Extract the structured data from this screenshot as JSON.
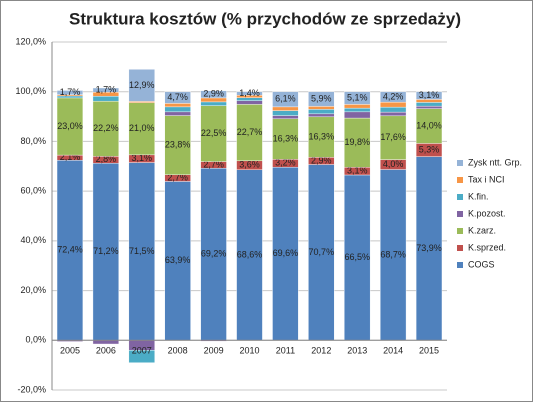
{
  "chart_data": {
    "type": "stacked_bar",
    "title": "Struktura kosztów (% przychodów ze sprzedaży)",
    "categories": [
      "2005",
      "2006",
      "2007",
      "2008",
      "2009",
      "2010",
      "2011",
      "2012",
      "2013",
      "2014",
      "2015"
    ],
    "ylim": [
      -20,
      120
    ],
    "yticks": [
      {
        "value": -20,
        "label": "-20,0%"
      },
      {
        "value": 0,
        "label": "0,0%"
      },
      {
        "value": 20,
        "label": "20,0%"
      },
      {
        "value": 40,
        "label": "40,0%"
      },
      {
        "value": 60,
        "label": "60,0%"
      },
      {
        "value": 80,
        "label": "80,0%"
      },
      {
        "value": 100,
        "label": "100,0%"
      },
      {
        "value": 120,
        "label": "120,0%"
      }
    ],
    "grid": true,
    "legend": "right",
    "series": [
      {
        "name": "COGS",
        "color": "#4f81bd",
        "values": [
          72.4,
          71.2,
          71.5,
          63.9,
          69.2,
          68.6,
          69.6,
          70.7,
          66.5,
          68.7,
          73.9
        ],
        "value_labels": [
          "72,4%",
          "71,2%",
          "71,5%",
          "63,9%",
          "69,2%",
          "68,6%",
          "69,6%",
          "70,7%",
          "66,5%",
          "68,7%",
          "73,9%"
        ]
      },
      {
        "name": "K.sprzed.",
        "color": "#c0504d",
        "values": [
          2.1,
          2.8,
          3.1,
          2.7,
          2.7,
          3.6,
          3.2,
          2.9,
          3.1,
          4.0,
          5.3
        ],
        "value_labels": [
          "2,1%",
          "2,8%",
          "3,1%",
          "2,7%",
          "2,7%",
          "3,6%",
          "3,2%",
          "2,9%",
          "3,1%",
          "4,0%",
          "5,3%"
        ]
      },
      {
        "name": "K.zarz.",
        "color": "#9bbb59",
        "values": [
          23.0,
          22.2,
          21.0,
          23.8,
          22.5,
          22.7,
          16.3,
          16.3,
          19.8,
          17.6,
          14.0
        ],
        "value_labels": [
          "23,0%",
          "22,2%",
          "21,0%",
          "23,8%",
          "22,5%",
          "22,7%",
          "16,3%",
          "16,3%",
          "19,8%",
          "17,6%",
          "14,0%"
        ]
      },
      {
        "name": "K.pozost.",
        "color": "#8064a2",
        "values": [
          -0.5,
          -1.5,
          -4.0,
          1.5,
          -0.4,
          1.5,
          1.3,
          1.2,
          2.5,
          1.5,
          1.0
        ]
      },
      {
        "name": "K.fin.",
        "color": "#4bacc6",
        "values": [
          0.8,
          2.0,
          -5.0,
          2.0,
          1.5,
          1.2,
          2.0,
          1.8,
          1.5,
          2.0,
          1.5
        ]
      },
      {
        "name": "Tax i NCI",
        "color": "#f79646",
        "values": [
          0.5,
          1.6,
          0.5,
          1.4,
          1.6,
          1.0,
          1.5,
          1.2,
          1.5,
          2.0,
          1.2
        ]
      },
      {
        "name": "Zysk ntt. Grp.",
        "color": "#95b3d7",
        "values": [
          1.7,
          1.7,
          12.9,
          4.7,
          2.9,
          1.4,
          6.1,
          5.9,
          5.1,
          4.2,
          3.1
        ],
        "value_labels": [
          "1,7%",
          "1,7%",
          "12,9%",
          "4,7%",
          "2,9%",
          "1,4%",
          "6,1%",
          "5,9%",
          "5,1%",
          "4,2%",
          "3,1%"
        ]
      }
    ]
  }
}
